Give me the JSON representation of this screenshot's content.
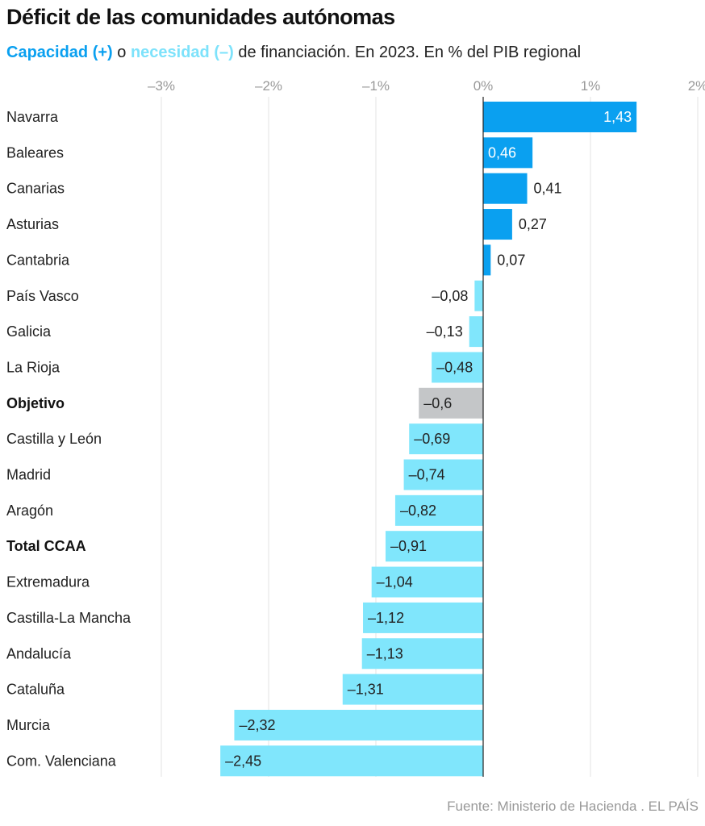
{
  "header": {
    "title": "Déficit de las comunidades autónomas",
    "subtitle_cap": "Capacidad (+)",
    "subtitle_o": " o ",
    "subtitle_nec": "necesidad (–)",
    "subtitle_rest": " de financiación. En 2023. En % del PIB regional"
  },
  "footer": {
    "source": "Fuente: Ministerio de Hacienda . EL PAÍS"
  },
  "colors": {
    "positive": "#0aa0f0",
    "negative": "#80e6fc",
    "highlight": "#c4c6c8",
    "grid": "#e3e3e3",
    "axis": "#222222"
  },
  "chart_data": {
    "type": "bar",
    "orientation": "horizontal",
    "title": "Déficit de las comunidades autónomas",
    "subtitle": "Capacidad (+) o necesidad (–) de financiación. En 2023. En % del PIB regional",
    "xlabel": "",
    "ylabel": "",
    "xlim": [
      -3,
      2
    ],
    "xticks": [
      -3,
      -2,
      -1,
      0,
      1,
      2
    ],
    "xtick_labels": [
      "–3%",
      "–2%",
      "–1%",
      "0%",
      "1%",
      "2%"
    ],
    "grid": true,
    "categories": [
      "Navarra",
      "Baleares",
      "Canarias",
      "Asturias",
      "Cantabria",
      "País Vasco",
      "Galicia",
      "La Rioja",
      "Objetivo",
      "Castilla y León",
      "Madrid",
      "Aragón",
      "Total CCAA",
      "Extremadura",
      "Castilla-La Mancha",
      "Andalucía",
      "Cataluña",
      "Murcia",
      "Com. Valenciana"
    ],
    "values": [
      1.43,
      0.46,
      0.41,
      0.27,
      0.07,
      -0.08,
      -0.13,
      -0.48,
      -0.6,
      -0.69,
      -0.74,
      -0.82,
      -0.91,
      -1.04,
      -1.12,
      -1.13,
      -1.31,
      -2.32,
      -2.45
    ],
    "value_labels": [
      "1,43",
      "0,46",
      "0,41",
      "0,27",
      "0,07",
      "–0,08",
      "–0,13",
      "–0,48",
      "–0,6",
      "–0,69",
      "–0,74",
      "–0,82",
      "–0,91",
      "–1,04",
      "–1,12",
      "–1,13",
      "–1,31",
      "–2,32",
      "–2,45"
    ],
    "bold_categories": [
      "Objetivo",
      "Total CCAA"
    ],
    "highlight_categories": [
      "Objetivo"
    ],
    "source": "Fuente: Ministerio de Hacienda . EL PAÍS"
  }
}
